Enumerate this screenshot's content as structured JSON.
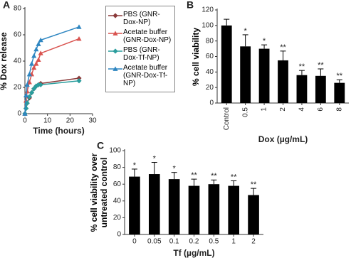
{
  "chart_data": [
    {
      "type": "line",
      "panel": "A",
      "ylabel": "% Dox release",
      "xlabel": "Time (hours)",
      "x": [
        0,
        0.5,
        1,
        2,
        3,
        4,
        5,
        6,
        7,
        24
      ],
      "series": [
        {
          "name": "PBS (GNR-Dox-NP)",
          "color": "#8b3a3a",
          "marker": "diamond",
          "values": [
            0,
            4,
            8,
            12,
            16,
            19,
            21,
            22,
            23,
            27
          ]
        },
        {
          "name": "Acetate buffer (GNR-Dox-NP)",
          "color": "#d9534f",
          "marker": "triangle",
          "values": [
            0,
            10,
            17,
            24,
            30,
            35,
            38,
            41,
            46,
            57
          ]
        },
        {
          "name": "PBS (GNR-Dox-Tf-NP)",
          "color": "#2a9d9d",
          "marker": "diamond",
          "values": [
            0,
            4,
            8,
            13,
            16,
            19,
            21,
            22,
            22,
            25
          ]
        },
        {
          "name": "Acetate buffer (GNR-Dox-Tf-NP)",
          "color": "#2e86c1",
          "marker": "triangle",
          "values": [
            0,
            14,
            22,
            30,
            38,
            44,
            49,
            53,
            56,
            66
          ]
        }
      ],
      "xlim": [
        0,
        30
      ],
      "xticks": [
        0,
        10,
        20,
        30
      ],
      "ylim": [
        0,
        80
      ],
      "yticks": [
        0,
        20,
        40,
        60,
        80
      ]
    },
    {
      "type": "bar",
      "panel": "B",
      "ylabel": "% cell viability",
      "xlabel": "Dox (µg/mL)",
      "categories": [
        "Control",
        "0.5",
        "1",
        "2",
        "4",
        "6",
        "8"
      ],
      "values": [
        100,
        73,
        70,
        55,
        36,
        35,
        26
      ],
      "errors": [
        8,
        15,
        5,
        12,
        6,
        9,
        4
      ],
      "significance": [
        null,
        "*",
        "*",
        "**",
        "**",
        "**",
        "**"
      ],
      "color": "#000000",
      "xtick_rotation": 90,
      "ylim": [
        0,
        120
      ],
      "yticks": [
        0,
        20,
        40,
        60,
        80,
        100,
        120
      ]
    },
    {
      "type": "bar",
      "panel": "C",
      "ylabel": "% cell viability over untreated control",
      "xlabel": "Tf (µg/mL)",
      "categories": [
        "0",
        "0.05",
        "0.1",
        "0.2",
        "0.5",
        "1",
        "2"
      ],
      "values": [
        69,
        72,
        66,
        58,
        60,
        58,
        47
      ],
      "errors": [
        9,
        14,
        8,
        8,
        5,
        6,
        8
      ],
      "significance": [
        "*",
        "*",
        "*",
        "**",
        "**",
        "**",
        "**"
      ],
      "color": "#000000",
      "xtick_rotation": 0,
      "ylim": [
        0,
        100
      ],
      "yticks": [
        0,
        20,
        40,
        60,
        80,
        100
      ]
    }
  ]
}
